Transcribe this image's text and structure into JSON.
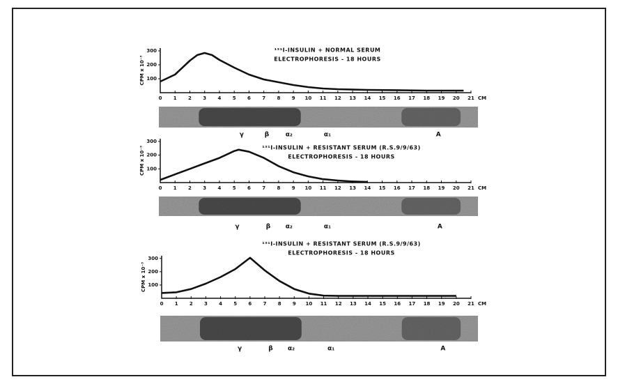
{
  "chart_data": [
    {
      "type": "line",
      "title": [
        "¹³¹I-INSULIN + NORMAL SERUM",
        "ELECTROPHORESIS - 18 HOURS"
      ],
      "y_label": "CPM x 10⁻³",
      "x_label": "CM",
      "x": [
        0,
        1,
        2,
        2.5,
        3,
        3.5,
        4,
        5,
        6,
        7,
        8,
        9,
        10,
        11,
        12,
        14,
        16,
        18,
        20.5
      ],
      "values": [
        80,
        130,
        230,
        270,
        285,
        270,
        235,
        180,
        130,
        95,
        75,
        55,
        40,
        30,
        25,
        20,
        18,
        15,
        15
      ],
      "color": "#111111",
      "xlim": [
        0,
        21
      ],
      "ylim": [
        0,
        320
      ],
      "xticks": [
        0,
        1,
        2,
        3,
        4,
        5,
        6,
        7,
        8,
        9,
        10,
        11,
        12,
        13,
        14,
        15,
        16,
        17,
        18,
        19,
        20,
        21
      ],
      "yticks": [
        100,
        200,
        300
      ],
      "band_labels": [
        {
          "label": "γ",
          "x": 5.5
        },
        {
          "label": "β",
          "x": 7.2
        },
        {
          "label": "α₂",
          "x": 8.7
        },
        {
          "label": "α₁",
          "x": 11.3
        },
        {
          "label": "A",
          "x": 18.8
        }
      ]
    },
    {
      "type": "line",
      "title": [
        "¹³¹I-INSULIN + RESISTANT SERUM (R.S.9/9/63)",
        "ELECTROPHORESIS - 18 HOURS"
      ],
      "y_label": "CPM x 10⁻³",
      "x_label": "CM",
      "x": [
        0,
        1,
        2,
        3,
        4,
        5,
        5.3,
        6,
        7,
        8,
        9,
        10,
        11,
        12,
        13,
        14
      ],
      "values": [
        20,
        60,
        100,
        140,
        180,
        230,
        240,
        225,
        180,
        120,
        75,
        45,
        25,
        15,
        8,
        5
      ],
      "color": "#111111",
      "xlim": [
        0,
        21
      ],
      "ylim": [
        0,
        320
      ],
      "xticks": [
        0,
        1,
        2,
        3,
        4,
        5,
        6,
        7,
        8,
        9,
        10,
        11,
        12,
        13,
        14,
        15,
        16,
        17,
        18,
        19,
        20,
        21
      ],
      "yticks": [
        100,
        200,
        300
      ],
      "band_labels": [
        {
          "label": "γ",
          "x": 5.2
        },
        {
          "label": "β",
          "x": 7.3
        },
        {
          "label": "α₂",
          "x": 8.7
        },
        {
          "label": "α₁",
          "x": 11.3
        },
        {
          "label": "A",
          "x": 18.9
        }
      ]
    },
    {
      "type": "line",
      "title": [
        "¹³¹I-INSULIN + RESISTANT SERUM (R.S.9/9/63)",
        "ELECTROPHORESIS - 18 HOURS"
      ],
      "y_label": "CPM x 10⁻³",
      "x_label": "CM",
      "x": [
        0,
        1,
        2,
        3,
        4,
        5,
        6,
        7,
        8,
        9,
        10,
        11,
        12,
        14,
        16,
        18,
        20
      ],
      "values": [
        40,
        45,
        70,
        110,
        160,
        220,
        305,
        210,
        130,
        70,
        35,
        20,
        18,
        18,
        18,
        18,
        18
      ],
      "color": "#111111",
      "xlim": [
        0,
        21
      ],
      "ylim": [
        0,
        320
      ],
      "xticks": [
        0,
        1,
        2,
        3,
        4,
        5,
        6,
        7,
        8,
        9,
        10,
        11,
        12,
        13,
        14,
        15,
        16,
        17,
        18,
        19,
        20,
        21
      ],
      "yticks": [
        100,
        200,
        300
      ],
      "band_labels": [
        {
          "label": "γ",
          "x": 5.3
        },
        {
          "label": "β",
          "x": 7.4
        },
        {
          "label": "α₂",
          "x": 8.8
        },
        {
          "label": "α₁",
          "x": 11.5
        },
        {
          "label": "A",
          "x": 19.1
        }
      ]
    }
  ]
}
